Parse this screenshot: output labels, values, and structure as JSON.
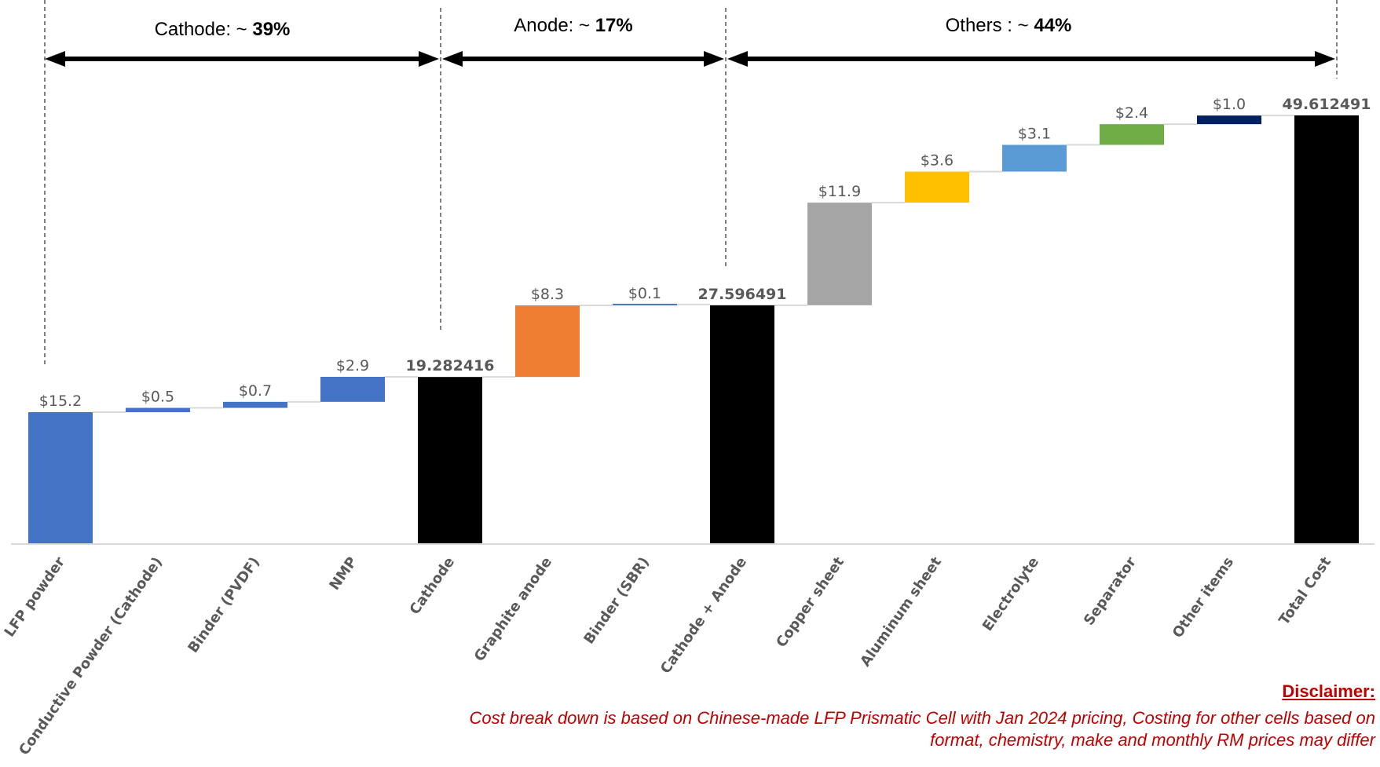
{
  "headers": [
    {
      "prefix": "Cathode: ~ ",
      "value": "39%"
    },
    {
      "prefix": "Anode: ~ ",
      "value": "17%"
    },
    {
      "prefix": "Others : ~ ",
      "value": "44%"
    }
  ],
  "chart_data": {
    "type": "waterfall",
    "title": "",
    "xlabel": "",
    "ylabel": "",
    "grid": false,
    "legend": "none",
    "categories": [
      "LFP powder",
      "Conductive Powder (Cathode)",
      "Binder (PVDF)",
      "NMP",
      "Cathode",
      "Graphite anode",
      "Binder (SBR)",
      "Cathode + Anode",
      "Copper sheet",
      "Aluminum sheet",
      "Electrolyte",
      "Separator",
      "Other items",
      "Total Cost"
    ],
    "values": [
      15.2,
      0.5,
      0.7,
      2.9,
      19.282416,
      8.3,
      0.1,
      27.596491,
      11.9,
      3.6,
      3.1,
      2.4,
      1.0,
      49.612491
    ],
    "labels": [
      "$15.2",
      "$0.5",
      "$0.7",
      "$2.9",
      "19.282416",
      "$8.3",
      "$0.1",
      "27.596491",
      "$11.9",
      "$3.6",
      "$3.1",
      "$2.4",
      "$1.0",
      "49.612491"
    ],
    "is_total": [
      false,
      false,
      false,
      false,
      true,
      false,
      false,
      true,
      false,
      false,
      false,
      false,
      false,
      true
    ],
    "colors": [
      "#4472c4",
      "#4472c4",
      "#4472c4",
      "#4472c4",
      "#000000",
      "#ed7d31",
      "#4472c4",
      "#000000",
      "#a5a5a5",
      "#ffc000",
      "#5b9bd5",
      "#70ad47",
      "#002060",
      "#000000"
    ],
    "ylim": [
      0,
      52
    ]
  },
  "disclaimer": {
    "title": "Disclaimer:",
    "text": "Cost break down is based on Chinese-made LFP Prismatic Cell with Jan 2024 pricing, Costing for other cells based on format, chemistry, make and monthly RM prices may differ"
  }
}
